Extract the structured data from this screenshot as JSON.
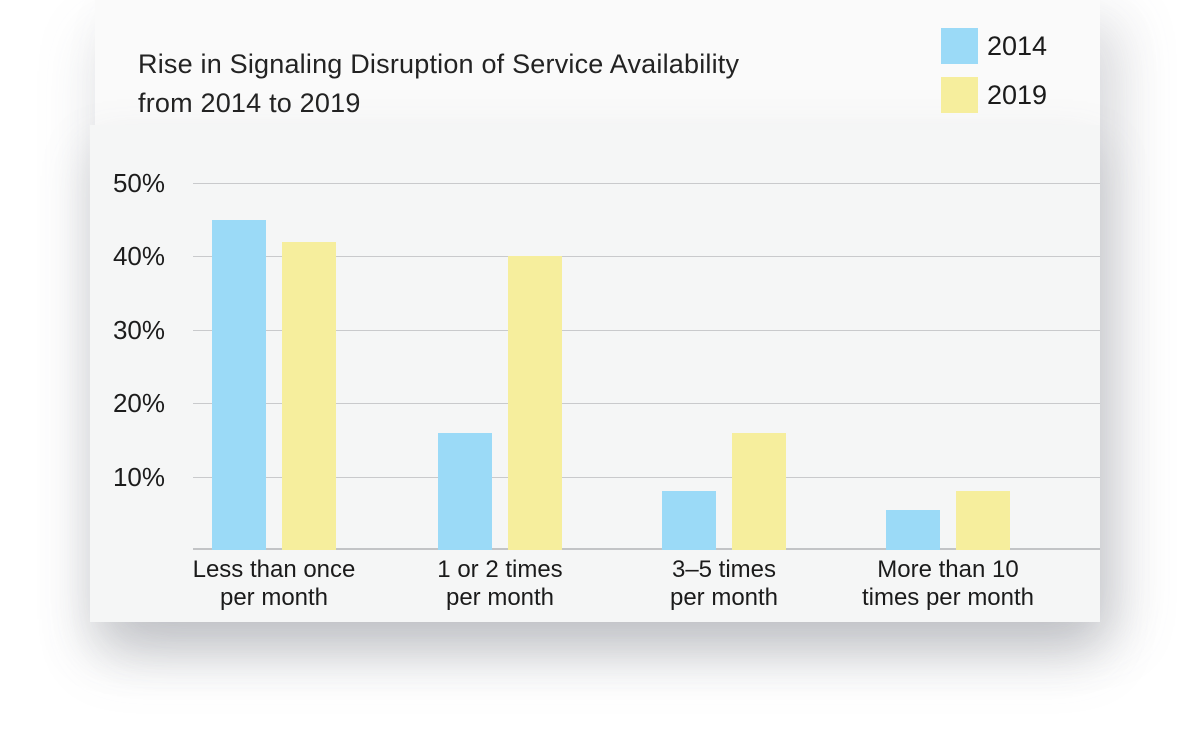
{
  "card": {
    "background": "#fafafa"
  },
  "panel": {
    "background": "#f5f6f6"
  },
  "title_lines": [
    "Rise in Signaling Disruption of Service Availability",
    "from 2014 to 2019"
  ],
  "chart_data": {
    "type": "bar",
    "title": "Rise in Signaling Disruption of Service Availability from 2014 to 2019",
    "categories": [
      [
        "Less than once",
        "per month"
      ],
      [
        "1 or 2 times",
        "per month"
      ],
      [
        "3–5 times",
        "per month"
      ],
      [
        "More than 10",
        "times per month"
      ]
    ],
    "series": [
      {
        "name": "2014",
        "color": "#9bdaf7",
        "values": [
          45,
          16,
          8,
          5.5
        ]
      },
      {
        "name": "2019",
        "color": "#f6ee9d",
        "values": [
          42,
          40,
          16,
          8
        ]
      }
    ],
    "y_ticks": [
      "50%",
      "40%",
      "30%",
      "20%",
      "10%"
    ],
    "y_tick_values": [
      50,
      40,
      30,
      20,
      10
    ],
    "ylim": [
      0,
      50
    ],
    "unit": "%",
    "grid": true,
    "legend_position": "top-right",
    "gridline_color": "#c9cacc",
    "axis_line_color": "#c2c4c6",
    "text_color": "#1b1b1b"
  }
}
